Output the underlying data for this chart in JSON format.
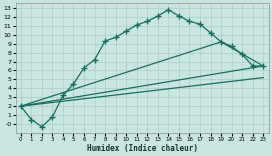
{
  "xlabel": "Humidex (Indice chaleur)",
  "background_color": "#c8e6df",
  "grid_color": "#a8cfc8",
  "line_color": "#1a6b60",
  "xlim": [
    -0.5,
    23.5
  ],
  "ylim": [
    -1.0,
    13.5
  ],
  "xticks": [
    0,
    1,
    2,
    3,
    4,
    5,
    6,
    7,
    8,
    9,
    10,
    11,
    12,
    13,
    14,
    15,
    16,
    17,
    18,
    19,
    20,
    21,
    22,
    23
  ],
  "yticks": [
    0,
    1,
    2,
    3,
    4,
    5,
    6,
    7,
    8,
    9,
    10,
    11,
    12,
    13
  ],
  "ytick_labels": [
    "-0",
    "1",
    "2",
    "3",
    "4",
    "5",
    "6",
    "7",
    "8",
    "9",
    "10",
    "11",
    "12",
    "13"
  ],
  "curve1_x": [
    0,
    1,
    2,
    3,
    4,
    5,
    6,
    7,
    8,
    9,
    10,
    11,
    12,
    13,
    14,
    15,
    16,
    17,
    18,
    19,
    20,
    21,
    22,
    23
  ],
  "curve1_y": [
    2.0,
    0.5,
    -0.3,
    0.8,
    3.2,
    4.5,
    6.3,
    7.2,
    9.3,
    9.7,
    10.4,
    11.1,
    11.5,
    12.1,
    12.8,
    12.1,
    11.5,
    11.2,
    10.2,
    9.2,
    8.7,
    7.8,
    6.5,
    6.5
  ],
  "curve2_x": [
    0,
    19,
    23
  ],
  "curve2_y": [
    2.0,
    9.2,
    6.5
  ],
  "curve3_x": [
    0,
    23
  ],
  "curve3_y": [
    2.0,
    6.5
  ],
  "curve4_x": [
    0,
    23
  ],
  "curve4_y": [
    2.0,
    5.2
  ],
  "marker": "+",
  "markersize": 4,
  "linewidth": 0.9
}
